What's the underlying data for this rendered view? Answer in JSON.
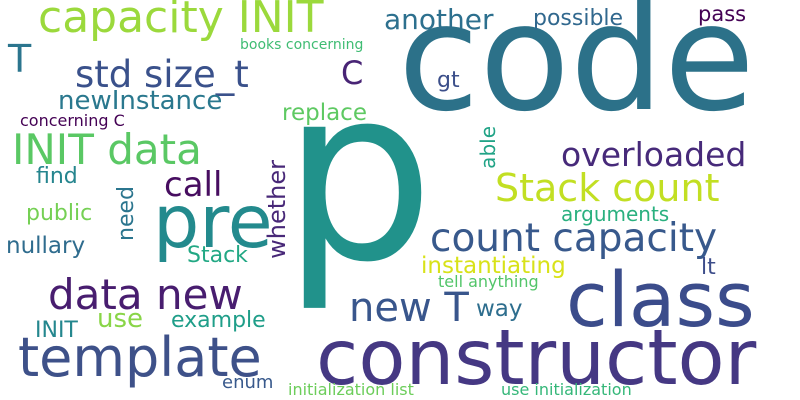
{
  "words": [
    {
      "text": "code",
      "color": "#2c7189"
    },
    {
      "text": "p",
      "color": "#21928b"
    },
    {
      "text": "constructor",
      "color": "#453883"
    },
    {
      "text": "class",
      "color": "#3b4c8b"
    },
    {
      "text": "template",
      "color": "#3e5189"
    },
    {
      "text": "pre",
      "color": "#238a8d"
    },
    {
      "text": "capacity INIT",
      "color": "#9bd93c"
    },
    {
      "text": "count capacity",
      "color": "#38598c"
    },
    {
      "text": "Stack count",
      "color": "#c2df23"
    },
    {
      "text": "INIT data",
      "color": "#5ac864"
    },
    {
      "text": "std size_t",
      "color": "#3a518b"
    },
    {
      "text": "data new",
      "color": "#481d6f"
    },
    {
      "text": "new T",
      "color": "#39568c"
    },
    {
      "text": "overloaded",
      "color": "#472a7a"
    },
    {
      "text": "another",
      "color": "#2d708e"
    },
    {
      "text": "call",
      "color": "#470d60"
    },
    {
      "text": "T",
      "color": "#2b758e"
    },
    {
      "text": "C",
      "color": "#482475"
    },
    {
      "text": "newInstance",
      "color": "#2a788e"
    },
    {
      "text": "replace",
      "color": "#5ec962"
    },
    {
      "text": "possible",
      "color": "#31688e"
    },
    {
      "text": "pass",
      "color": "#440154"
    },
    {
      "text": "books concerning",
      "color": "#3fbc73"
    },
    {
      "text": "concerning C",
      "color": "#440154"
    },
    {
      "text": "gt",
      "color": "#3c4f8a"
    },
    {
      "text": "find",
      "color": "#25858e"
    },
    {
      "text": "public",
      "color": "#75d054"
    },
    {
      "text": "need",
      "color": "#2b758e"
    },
    {
      "text": "whether",
      "color": "#482878"
    },
    {
      "text": "able",
      "color": "#20a386"
    },
    {
      "text": "arguments",
      "color": "#2ab07f"
    },
    {
      "text": "nullary",
      "color": "#2f6c8e"
    },
    {
      "text": "Stack",
      "color": "#22a884"
    },
    {
      "text": "instantiating",
      "color": "#d8e219"
    },
    {
      "text": "lt",
      "color": "#3d4d8a"
    },
    {
      "text": "tell anything",
      "color": "#52c569"
    },
    {
      "text": "use",
      "color": "#89d548"
    },
    {
      "text": "example",
      "color": "#1f9e89"
    },
    {
      "text": "way",
      "color": "#2e6e8e"
    },
    {
      "text": "INIT",
      "color": "#24878e"
    },
    {
      "text": "enum",
      "color": "#38598c"
    },
    {
      "text": "initialization list",
      "color": "#6ccd5a"
    },
    {
      "text": "use initialization",
      "color": "#35b779"
    }
  ]
}
